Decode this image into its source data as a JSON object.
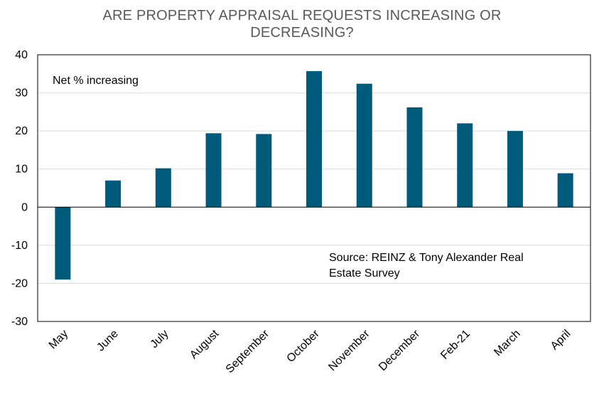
{
  "chart_data": {
    "type": "bar",
    "title_lines": [
      "ARE PROPERTY APPRAISAL REQUESTS INCREASING OR",
      "DECREASING?"
    ],
    "categories": [
      "May",
      "June",
      "July",
      "August",
      "September",
      "October",
      "November",
      "December",
      "Feb-21",
      "March",
      "April"
    ],
    "values": [
      -19,
      7,
      10.2,
      19.4,
      19.2,
      35.7,
      32.4,
      26.2,
      22,
      20,
      8.9
    ],
    "ylim": [
      -30,
      40
    ],
    "yticks": [
      "-30",
      "-20",
      "-10",
      "0",
      "10",
      "20",
      "30",
      "40"
    ],
    "annotation": "Net % increasing",
    "source_lines": [
      "Source: REINZ & Tony Alexander  Real",
      "Estate Survey"
    ],
    "bar_color": "#005a7a",
    "grid": true
  }
}
